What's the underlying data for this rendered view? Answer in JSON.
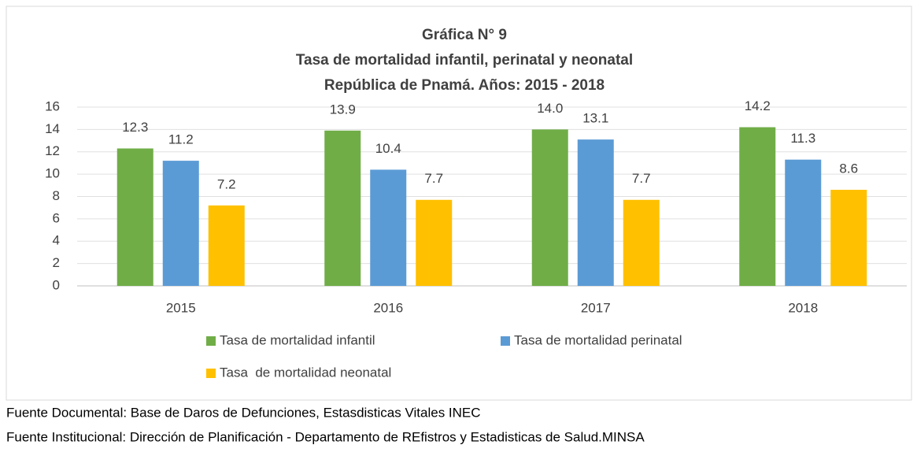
{
  "chart_data": {
    "type": "bar",
    "title": [
      "Gráfica N° 9",
      "Tasa de mortalidad infantil, perinatal y neonatal",
      "República de Pnamá. Años: 2015 - 2018"
    ],
    "categories": [
      "2015",
      "2016",
      "2017",
      "2018"
    ],
    "series": [
      {
        "name": "Tasa de mortalidad infantil",
        "color": "#70ad47",
        "values": [
          12.3,
          13.9,
          14,
          14.2
        ],
        "value_labels": [
          "12.3",
          "13.9",
          "14.0",
          "14.2"
        ]
      },
      {
        "name": "Tasa de mortalidad perinatal",
        "color": "#5b9bd5",
        "values": [
          11.2,
          10.4,
          13.1,
          11.3
        ],
        "value_labels": [
          "11.2",
          "10.4",
          "13.1",
          "11.3"
        ]
      },
      {
        "name": "Tasa  de mortalidad neonatal",
        "color": "#ffc000",
        "values": [
          7.2,
          7.7,
          7.7,
          8.6
        ],
        "value_labels": [
          "7.2",
          "7.7",
          "7.7",
          "8.6"
        ]
      }
    ],
    "ylim": [
      0,
      16
    ],
    "yticks": [
      0,
      2,
      4,
      6,
      8,
      10,
      12,
      14,
      16
    ],
    "grid": true,
    "legend": "bottom",
    "source": [
      "Fuente Documental: Base de Daros de Defunciones, Estasdisticas Vitales INEC",
      "Fuente Institucional: Dirección de Planificación - Departamento de REfistros y Estadisticas de Salud.MINSA"
    ]
  }
}
